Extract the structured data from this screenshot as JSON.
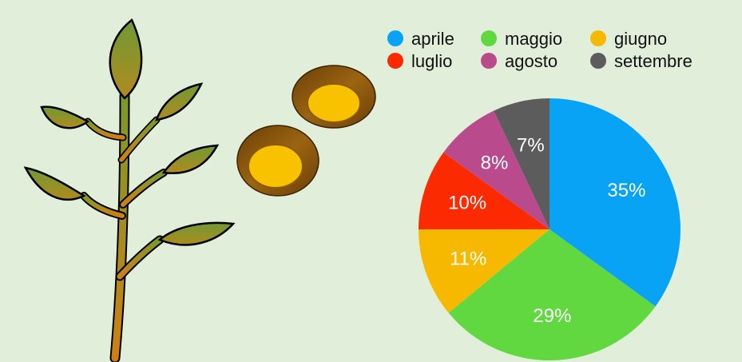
{
  "chart_data": {
    "type": "pie",
    "categories": [
      "aprile",
      "maggio",
      "giugno",
      "luglio",
      "agosto",
      "settembre"
    ],
    "values": [
      35,
      29,
      11,
      10,
      8,
      7
    ],
    "labels": [
      "35%",
      "29%",
      "11%",
      "10%",
      "8%",
      "7%"
    ],
    "colors": [
      "#08a3f4",
      "#61d83f",
      "#f7b900",
      "#fb2a00",
      "#b94b8d",
      "#5d5c5c"
    ],
    "legend_position": "top-right",
    "start_angle": "12 o'clock",
    "direction": "clockwise"
  },
  "decoration": {
    "plant_icon": "plant-seedling",
    "seed_icons": "coins",
    "background_color": "#e1eeda"
  }
}
